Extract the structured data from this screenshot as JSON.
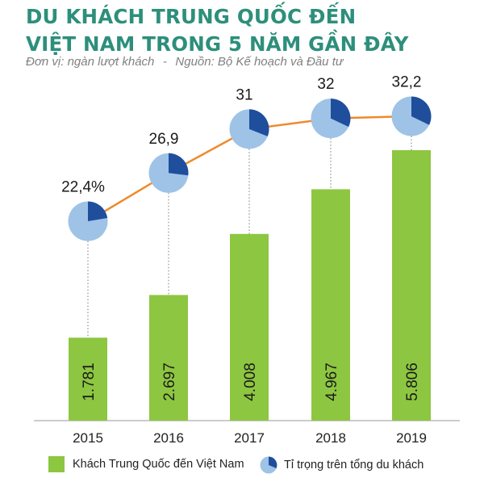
{
  "title_line1": "DU KHÁCH TRUNG QUỐC ĐẾN",
  "title_line2": "VIỆT NAM TRONG 5 NĂM GẦN ĐÂY",
  "unit_text": "Đơn vị: ngàn lượt khách",
  "separator": "-",
  "source_text": "Nguồn: Bộ Kế hoạch và Đầu tư",
  "colors": {
    "title": "#2d8f7b",
    "bar": "#8dc641",
    "pie_base": "#9ec3e6",
    "pie_slice": "#1f4e9c",
    "line": "#ee8a2c",
    "axis": "#9a9a9a"
  },
  "legend": {
    "bars_label": "Khách Trung Quốc đến Việt Nam",
    "pies_label": "Tỉ trọng trên tổng du khách"
  },
  "chart_data": {
    "type": "bar",
    "categories": [
      "2015",
      "2016",
      "2017",
      "2018",
      "2019"
    ],
    "series": [
      {
        "name": "Khách Trung Quốc đến Việt Nam",
        "values": [
          1781,
          2697,
          4008,
          4967,
          5806
        ],
        "labels": [
          "1.781",
          "2.697",
          "4.008",
          "4.967",
          "5.806"
        ]
      },
      {
        "name": "Tỉ trọng trên tổng du khách",
        "type": "line",
        "values": [
          22.4,
          26.9,
          31,
          32,
          32.2
        ],
        "labels": [
          "22,4%",
          "26,9",
          "31",
          "32",
          "32,2"
        ]
      }
    ],
    "ylim": [
      0,
      5806
    ],
    "grid": false
  }
}
